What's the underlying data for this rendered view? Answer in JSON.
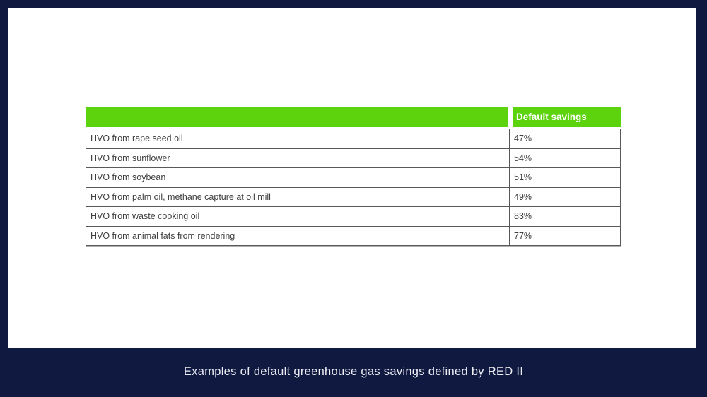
{
  "colors": {
    "background_navy": "#101a41",
    "panel_white": "#ffffff",
    "header_green": "#5cd30c",
    "table_border_gray": "#595959",
    "table_text_gray": "#3f3f3f",
    "caption_text": "#ececf2"
  },
  "table": {
    "header": [
      "",
      "Default savings"
    ],
    "rows": [
      {
        "label": "HVO from rape seed oil",
        "value": "47%"
      },
      {
        "label": "HVO from sunflower",
        "value": "54%"
      },
      {
        "label": "HVO from soybean",
        "value": "51%"
      },
      {
        "label": "HVO from palm oil, methane capture at oil mill",
        "value": "49%"
      },
      {
        "label": "HVO from waste cooking oil",
        "value": "83%"
      },
      {
        "label": "HVO from animal fats from rendering",
        "value": "77%"
      }
    ]
  },
  "caption": {
    "text": "Examples of default greenhouse gas savings defined by RED II"
  },
  "chart_data": {
    "type": "table",
    "title": "Examples of default greenhouse gas savings defined by RED II",
    "columns": [
      "",
      "Default savings"
    ],
    "categories": [
      "HVO from rape seed oil",
      "HVO from sunflower",
      "HVO from soybean",
      "HVO from palm oil, methane capture at oil mill",
      "HVO from waste cooking oil",
      "HVO from animal fats from rendering"
    ],
    "values": [
      47,
      54,
      51,
      49,
      83,
      77
    ],
    "value_unit": "%"
  }
}
